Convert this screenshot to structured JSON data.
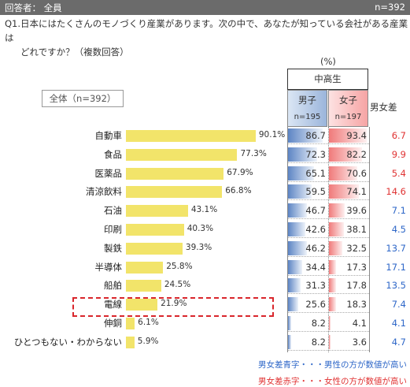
{
  "header": {
    "respondent": "回答者： 全員",
    "n": "n=392"
  },
  "question": {
    "line1": "Q1.日本にはたくさんのモノづくり産業があります。次の中で、あなたが知っている会社がある産業は",
    "line2": "どれですか？（複数回答）"
  },
  "unit": "(%)",
  "group_label": "中高生",
  "columns": {
    "male": {
      "label": "男子",
      "n": "n=195"
    },
    "female": {
      "label": "女子",
      "n": "n=197"
    },
    "diff": {
      "label": "男女差"
    }
  },
  "overall_label": "全体（n=392）",
  "colors": {
    "bar": "#f2e46a",
    "male": "#5d85c4",
    "female": "#f07a7a",
    "male_higher": "#2e67c8",
    "female_higher": "#e03333",
    "highlight": "#d9262c"
  },
  "highlighted_category": "電線",
  "chart_data": {
    "type": "bar",
    "categories": [
      "自動車",
      "食品",
      "医薬品",
      "清涼飲料",
      "石油",
      "印刷",
      "製鉄",
      "半導体",
      "船舶",
      "電線",
      "伸銅",
      "ひとつもない・わからない"
    ],
    "overall": [
      "90.1%",
      "77.3%",
      "67.9%",
      "66.8%",
      "43.1%",
      "40.3%",
      "39.3%",
      "25.8%",
      "24.5%",
      "21.9%",
      "6.1%",
      "5.9%"
    ],
    "overall_values": [
      90.1,
      77.3,
      67.9,
      66.8,
      43.1,
      40.3,
      39.3,
      25.8,
      24.5,
      21.9,
      6.1,
      5.9
    ],
    "male": [
      "86.7",
      "72.3",
      "65.1",
      "59.5",
      "46.7",
      "42.6",
      "46.2",
      "34.4",
      "31.3",
      "25.6",
      "8.2",
      "8.2"
    ],
    "male_values": [
      86.7,
      72.3,
      65.1,
      59.5,
      46.7,
      42.6,
      46.2,
      34.4,
      31.3,
      25.6,
      8.2,
      8.2
    ],
    "female": [
      "93.4",
      "82.2",
      "70.6",
      "74.1",
      "39.6",
      "38.1",
      "32.5",
      "17.3",
      "17.8",
      "18.3",
      "4.1",
      "3.6"
    ],
    "female_values": [
      93.4,
      82.2,
      70.6,
      74.1,
      39.6,
      38.1,
      32.5,
      17.3,
      17.8,
      18.3,
      4.1,
      3.6
    ],
    "diff": [
      "6.7",
      "9.9",
      "5.4",
      "14.6",
      "7.1",
      "4.5",
      "13.7",
      "17.1",
      "13.5",
      "7.4",
      "4.1",
      "4.7"
    ],
    "diff_higher": [
      "female",
      "female",
      "female",
      "female",
      "male",
      "male",
      "male",
      "male",
      "male",
      "male",
      "male",
      "male"
    ],
    "xlim": [
      0,
      100
    ]
  },
  "notes": {
    "blue": "男女差青字・・・男性の方が数値が高い",
    "red": "男女差赤字・・・女性の方が数値が高い"
  }
}
